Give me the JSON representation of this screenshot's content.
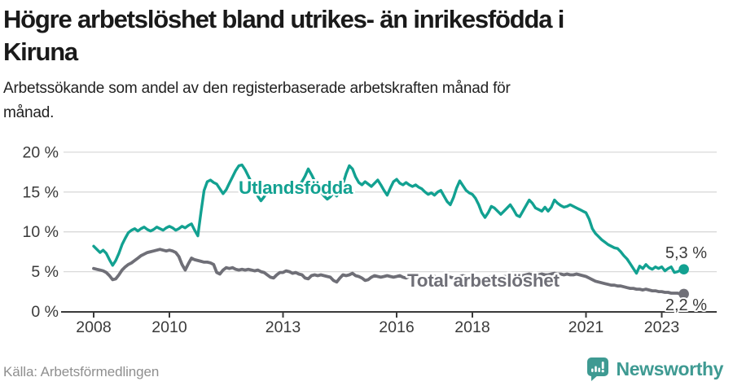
{
  "header": {
    "title_line1": "Högre arbetslöshet bland utrikes- än inrikesfödda i",
    "title_line2": "Kiruna",
    "subtitle_line1": "Arbetssökande som andel av den registerbaserade arbetskraften månad för",
    "subtitle_line2": "månad."
  },
  "footer": {
    "source": "Källa: Arbetsförmedlingen",
    "logo_text": "Newsworthy",
    "logo_icon": "bar-chart-speech-bubble-icon"
  },
  "colors": {
    "accent_teal": "#12a191",
    "series_gray": "#6f6f77",
    "axis_text": "#3a3a3a",
    "grid_line": "#d9d9d9",
    "source_text": "#8f8f8f",
    "logo_teal": "#3e9a92"
  },
  "chart_data": {
    "type": "line",
    "title": "Högre arbetslöshet bland utrikes- än inrikesfödda i Kiruna",
    "subtitle": "Arbetssökande som andel av den registerbaserade arbetskraften månad för månad.",
    "frequency": "monthly",
    "x_start": "2008-01",
    "x_end": "2023-08",
    "ylim": [
      0,
      20
    ],
    "grid": "horizontal",
    "legend_position": "inline-labels",
    "y_ticks": [
      {
        "value": 0,
        "label": "0 %"
      },
      {
        "value": 5,
        "label": "5 %"
      },
      {
        "value": 10,
        "label": "10 %"
      },
      {
        "value": 15,
        "label": "15 %"
      },
      {
        "value": 20,
        "label": "20 %"
      }
    ],
    "x_ticks": [
      {
        "year": 2008,
        "label": "2008"
      },
      {
        "year": 2010,
        "label": "2010"
      },
      {
        "year": 2013,
        "label": "2013"
      },
      {
        "year": 2016,
        "label": "2016"
      },
      {
        "year": 2018,
        "label": "2018"
      },
      {
        "year": 2021,
        "label": "2021"
      },
      {
        "year": 2023,
        "label": "2023"
      }
    ],
    "series": [
      {
        "name": "Utlandsfödda",
        "color": "#12a191",
        "end_label": "5,3 %",
        "last_value": 5.3,
        "values": [
          8.2,
          7.8,
          7.4,
          7.7,
          7.3,
          6.5,
          5.8,
          6.4,
          7.3,
          8.4,
          9.2,
          9.9,
          10.2,
          10.4,
          10.1,
          10.4,
          10.6,
          10.3,
          10.1,
          10.3,
          10.6,
          10.4,
          10.2,
          10.5,
          10.7,
          10.5,
          10.2,
          10.4,
          10.7,
          10.5,
          10.8,
          11.0,
          10.2,
          9.5,
          12.5,
          15.2,
          16.3,
          16.5,
          16.2,
          16.0,
          15.4,
          14.8,
          15.3,
          16.1,
          16.9,
          17.7,
          18.3,
          18.4,
          17.8,
          17.0,
          16.2,
          15.3,
          14.5,
          13.9,
          14.4,
          15.1,
          15.7,
          16.1,
          15.8,
          15.4,
          15.1,
          15.4,
          15.8,
          16.1,
          15.6,
          15.9,
          16.3,
          17.0,
          17.9,
          17.2,
          16.4,
          15.7,
          15.0,
          14.5,
          14.1,
          14.4,
          14.9,
          14.5,
          15.1,
          16.0,
          17.3,
          18.3,
          17.9,
          16.9,
          16.2,
          15.9,
          16.3,
          16.0,
          15.7,
          16.1,
          16.5,
          15.9,
          15.2,
          14.6,
          15.5,
          16.3,
          16.6,
          16.1,
          15.9,
          16.2,
          15.9,
          15.7,
          15.9,
          15.6,
          15.4,
          15.0,
          14.7,
          14.9,
          14.6,
          15.0,
          15.2,
          14.5,
          13.8,
          13.4,
          14.3,
          15.5,
          16.4,
          15.8,
          15.2,
          14.9,
          14.7,
          14.2,
          13.4,
          12.4,
          11.8,
          12.4,
          13.2,
          13.0,
          12.6,
          12.2,
          12.6,
          13.0,
          13.4,
          12.8,
          12.1,
          11.9,
          12.6,
          13.3,
          14.0,
          13.6,
          13.0,
          12.8,
          12.6,
          13.1,
          12.6,
          13.1,
          14.0,
          13.6,
          13.3,
          13.1,
          13.2,
          13.4,
          13.2,
          13.0,
          12.8,
          12.6,
          12.4,
          11.6,
          10.4,
          9.8,
          9.4,
          9.0,
          8.7,
          8.4,
          8.2,
          8.0,
          7.9,
          7.5,
          7.0,
          6.6,
          6.0,
          5.4,
          4.8,
          5.7,
          5.4,
          5.9,
          5.5,
          5.3,
          5.6,
          5.4,
          5.6,
          5.1,
          5.4,
          5.6,
          4.9,
          5.0,
          5.2,
          5.3
        ]
      },
      {
        "name": "Total arbetslöshet",
        "color": "#6f6f77",
        "end_label": "2,2 %",
        "last_value": 2.2,
        "values": [
          5.4,
          5.3,
          5.2,
          5.1,
          4.9,
          4.5,
          4.0,
          4.1,
          4.6,
          5.2,
          5.6,
          5.9,
          6.1,
          6.4,
          6.7,
          7.0,
          7.2,
          7.4,
          7.5,
          7.6,
          7.7,
          7.8,
          7.7,
          7.6,
          7.7,
          7.6,
          7.4,
          6.9,
          5.9,
          5.2,
          6.0,
          6.7,
          6.5,
          6.4,
          6.3,
          6.2,
          6.2,
          6.1,
          5.9,
          4.9,
          4.7,
          5.2,
          5.5,
          5.4,
          5.5,
          5.3,
          5.2,
          5.3,
          5.2,
          5.3,
          5.2,
          5.1,
          5.2,
          5.0,
          4.9,
          4.6,
          4.3,
          4.2,
          4.6,
          4.9,
          4.9,
          5.1,
          5.0,
          4.8,
          4.9,
          4.7,
          4.6,
          4.2,
          4.1,
          4.5,
          4.6,
          4.5,
          4.6,
          4.5,
          4.4,
          4.3,
          3.9,
          3.7,
          4.2,
          4.6,
          4.5,
          4.6,
          4.8,
          4.5,
          4.4,
          4.2,
          3.9,
          4.0,
          4.3,
          4.5,
          4.4,
          4.3,
          4.4,
          4.5,
          4.4,
          4.3,
          4.4,
          4.5,
          4.3,
          4.2,
          4.4,
          4.3,
          4.2,
          4.3,
          4.4,
          4.3,
          4.2,
          4.3,
          4.4,
          4.3,
          4.2,
          4.3,
          4.4,
          4.3,
          4.2,
          4.3,
          4.4,
          4.5,
          4.4,
          4.3,
          4.4,
          4.3,
          4.2,
          4.1,
          4.2,
          4.3,
          4.4,
          4.3,
          4.2,
          4.3,
          4.4,
          4.4,
          4.5,
          4.4,
          4.3,
          4.4,
          4.5,
          4.6,
          4.7,
          4.6,
          4.5,
          4.6,
          4.7,
          4.6,
          4.6,
          4.7,
          4.8,
          4.7,
          4.7,
          4.6,
          4.7,
          4.6,
          4.6,
          4.7,
          4.6,
          4.5,
          4.4,
          4.2,
          4.0,
          3.8,
          3.7,
          3.6,
          3.5,
          3.4,
          3.3,
          3.3,
          3.2,
          3.2,
          3.1,
          3.0,
          2.9,
          2.9,
          2.8,
          2.8,
          2.7,
          2.8,
          2.7,
          2.6,
          2.6,
          2.5,
          2.5,
          2.4,
          2.4,
          2.3,
          2.3,
          2.3,
          2.2,
          2.2
        ]
      }
    ]
  }
}
